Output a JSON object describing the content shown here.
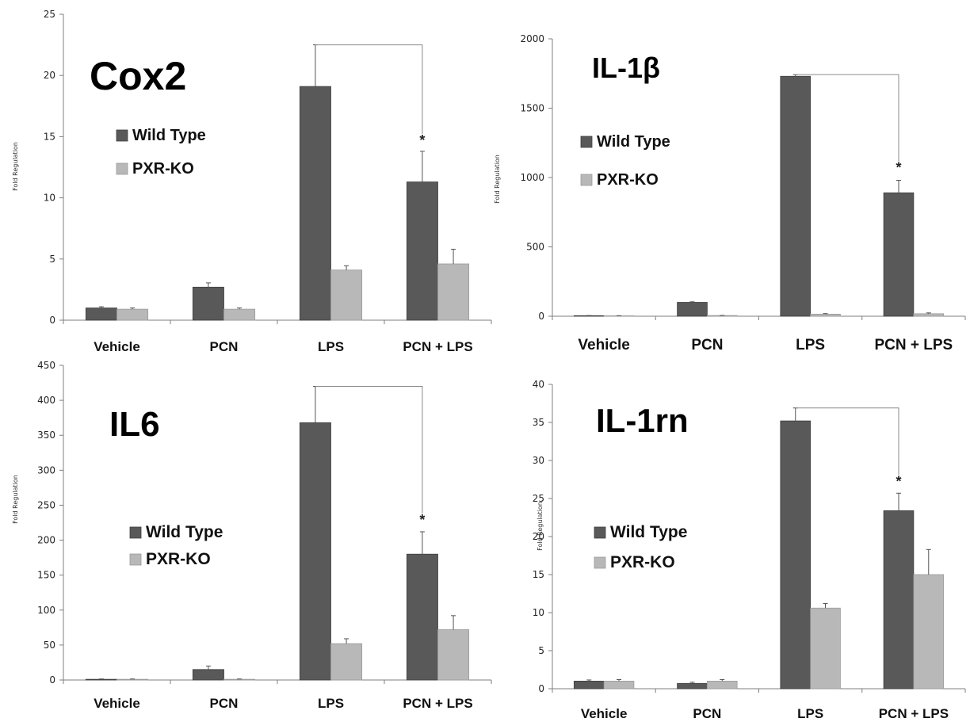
{
  "colors": {
    "wild_type": "#595959",
    "pxr_ko": "#b8b8b8",
    "axis": "#7f7f7f",
    "bracket": "#8a8a8a"
  },
  "chart_data": [
    {
      "type": "bar",
      "title": "Cox2",
      "ylabel": "Fold Regulation",
      "ylim": [
        0,
        25
      ],
      "yticks": [
        "0",
        "5",
        "10",
        "15",
        "20",
        "25"
      ],
      "categories": [
        "Vehicle",
        "PCN",
        "LPS",
        "PCN + LPS"
      ],
      "series": [
        {
          "name": "Wild Type",
          "values": [
            1.0,
            2.7,
            19.1,
            11.3
          ],
          "errors": [
            0.1,
            0.35,
            3.4,
            2.5
          ]
        },
        {
          "name": "PXR-KO",
          "values": [
            0.9,
            0.9,
            4.1,
            4.6
          ],
          "errors": [
            0.1,
            0.1,
            0.35,
            1.2
          ]
        }
      ],
      "significance": {
        "marker": "*",
        "from": "LPS",
        "to": "PCN + LPS"
      }
    },
    {
      "type": "bar",
      "title": "IL-1β",
      "ylabel": "Fold Regulation",
      "ylim": [
        0,
        2000
      ],
      "yticks": [
        "0",
        "500",
        "1000",
        "1500",
        "2000"
      ],
      "categories": [
        "Vehicle",
        "PCN",
        "LPS",
        "PCN + LPS"
      ],
      "series": [
        {
          "name": "Wild Type",
          "values": [
            4,
            100,
            1730,
            890
          ],
          "errors": [
            1,
            4,
            12,
            90
          ]
        },
        {
          "name": "PXR-KO",
          "values": [
            3,
            5,
            15,
            18
          ],
          "errors": [
            1,
            1,
            4,
            6
          ]
        }
      ],
      "significance": {
        "marker": "*",
        "from": "LPS",
        "to": "PCN + LPS"
      }
    },
    {
      "type": "bar",
      "title": "IL6",
      "ylabel": "Fold Regulation",
      "ylim": [
        0,
        450
      ],
      "yticks": [
        "0",
        "50",
        "100",
        "150",
        "200",
        "250",
        "300",
        "350",
        "400",
        "450"
      ],
      "categories": [
        "Vehicle",
        "PCN",
        "LPS",
        "PCN + LPS"
      ],
      "series": [
        {
          "name": "Wild Type",
          "values": [
            1,
            15,
            368,
            180
          ],
          "errors": [
            0.5,
            5,
            52,
            32
          ]
        },
        {
          "name": "PXR-KO",
          "values": [
            1,
            1,
            52,
            72
          ],
          "errors": [
            0.5,
            0.5,
            7,
            20
          ]
        }
      ],
      "significance": {
        "marker": "*",
        "from": "LPS",
        "to": "PCN + LPS"
      }
    },
    {
      "type": "bar",
      "title": "IL-1rn",
      "ylabel": "Fold Regulation",
      "ylim": [
        0,
        40
      ],
      "yticks": [
        "0",
        "5",
        "10",
        "15",
        "20",
        "25",
        "30",
        "35",
        "40"
      ],
      "categories": [
        "Vehicle",
        "PCN",
        "LPS",
        "PCN + LPS"
      ],
      "series": [
        {
          "name": "Wild Type",
          "values": [
            1.0,
            0.7,
            35.2,
            23.4
          ],
          "errors": [
            0.15,
            0.15,
            1.7,
            2.3
          ]
        },
        {
          "name": "PXR-KO",
          "values": [
            1.0,
            1.0,
            10.6,
            15.0
          ],
          "errors": [
            0.2,
            0.2,
            0.6,
            3.3
          ]
        }
      ],
      "significance": {
        "marker": "*",
        "from": "LPS",
        "to": "PCN + LPS"
      }
    }
  ]
}
